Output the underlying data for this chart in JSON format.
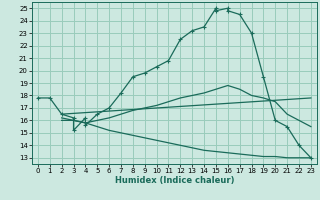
{
  "title": "",
  "xlabel": "Humidex (Indice chaleur)",
  "bg_color": "#cce8e0",
  "grid_color": "#99ccbb",
  "line_color": "#1a6b5a",
  "xlim": [
    -0.5,
    23.5
  ],
  "ylim": [
    12.5,
    25.5
  ],
  "xticks": [
    0,
    1,
    2,
    3,
    4,
    5,
    6,
    7,
    8,
    9,
    10,
    11,
    12,
    13,
    14,
    15,
    16,
    17,
    18,
    19,
    20,
    21,
    22,
    23
  ],
  "yticks": [
    13,
    14,
    15,
    16,
    17,
    18,
    19,
    20,
    21,
    22,
    23,
    24,
    25
  ],
  "curve1_x": [
    0,
    1,
    2,
    3,
    3,
    4,
    4,
    5,
    6,
    7,
    8,
    9,
    10,
    11,
    12,
    13,
    14,
    15,
    15,
    16,
    16,
    17,
    18,
    19,
    20,
    21,
    22,
    23
  ],
  "curve1_y": [
    17.8,
    17.8,
    16.5,
    16.2,
    15.2,
    16.2,
    15.6,
    16.5,
    17.0,
    18.2,
    19.5,
    19.8,
    20.3,
    20.8,
    22.5,
    23.2,
    23.5,
    25.0,
    24.8,
    25.0,
    24.8,
    24.5,
    23.0,
    19.5,
    16.0,
    15.5,
    14.0,
    13.0
  ],
  "curve2_x": [
    2,
    3,
    4,
    5,
    6,
    7,
    8,
    9,
    10,
    11,
    12,
    13,
    14,
    15,
    16,
    17,
    18,
    19,
    20,
    21,
    22,
    23
  ],
  "curve2_y": [
    16.0,
    16.0,
    15.8,
    16.0,
    16.2,
    16.5,
    16.8,
    17.0,
    17.2,
    17.5,
    17.8,
    18.0,
    18.2,
    18.5,
    18.8,
    18.5,
    18.0,
    17.8,
    17.5,
    16.5,
    16.0,
    15.5
  ],
  "curve3_x": [
    2,
    3,
    4,
    5,
    6,
    7,
    8,
    9,
    10,
    11,
    12,
    13,
    14,
    15,
    16,
    17,
    18,
    19,
    20,
    21,
    22,
    23
  ],
  "curve3_y": [
    16.2,
    16.0,
    15.8,
    15.5,
    15.2,
    15.0,
    14.8,
    14.6,
    14.4,
    14.2,
    14.0,
    13.8,
    13.6,
    13.5,
    13.4,
    13.3,
    13.2,
    13.1,
    13.1,
    13.0,
    13.0,
    13.0
  ],
  "curve4_x": [
    2,
    23
  ],
  "curve4_y": [
    16.5,
    17.8
  ]
}
